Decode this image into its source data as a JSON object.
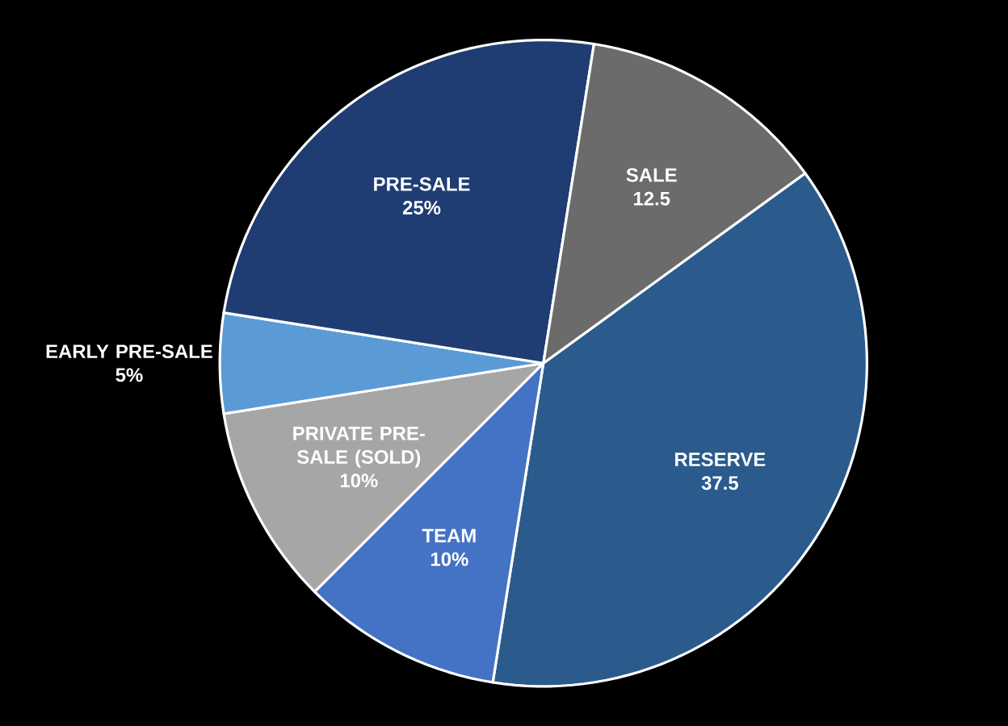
{
  "chart_data": {
    "type": "pie",
    "categories": [
      "RESERVE",
      "TEAM",
      "PRIVATE PRE-SALE (SOLD)",
      "EARLY PRE-SALE",
      "PRE-SALE",
      "SALE"
    ],
    "values": [
      37.5,
      10,
      10,
      5,
      25,
      12.5
    ],
    "value_labels": [
      "37.5",
      "10%",
      "10%",
      "5%",
      "25%",
      "12.5"
    ],
    "colors": [
      "#2a5b8c",
      "#4472c4",
      "#a6a6a6",
      "#5b9bd5",
      "#1f3d73",
      "#6b6b6b"
    ]
  }
}
